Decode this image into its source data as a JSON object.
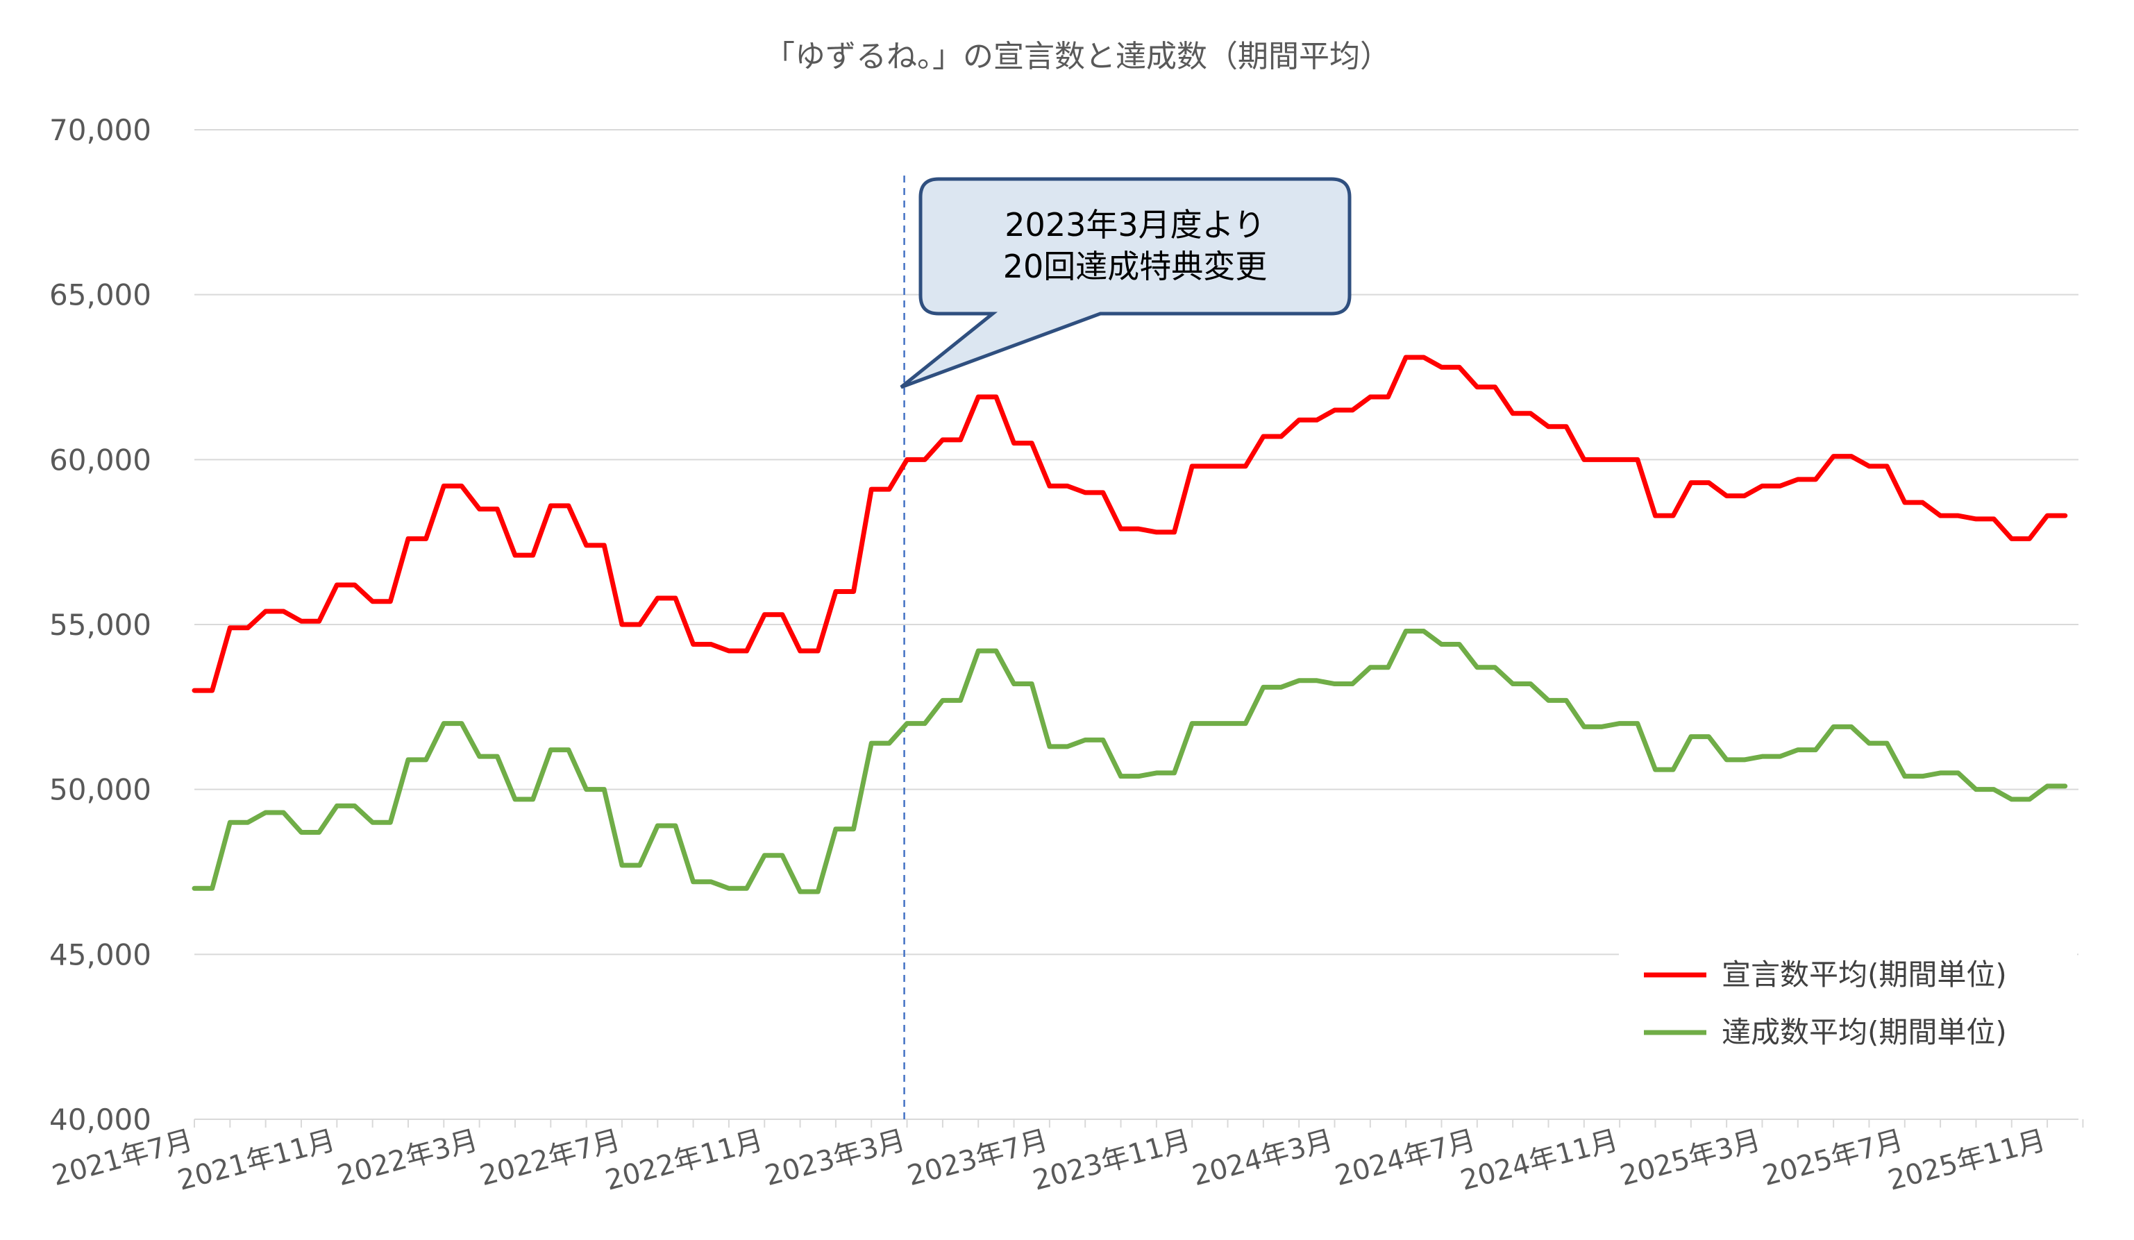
{
  "chart_data": {
    "type": "line",
    "title": "「ゆずるね。」の宣言数と達成数（期間平均）",
    "xlabel": "",
    "ylabel": "",
    "ylim": [
      40000,
      70000
    ],
    "y_ticks": [
      40000,
      45000,
      50000,
      55000,
      60000,
      65000,
      70000
    ],
    "y_tick_labels": [
      "40,000",
      "45,000",
      "50,000",
      "55,000",
      "60,000",
      "65,000",
      "70,000"
    ],
    "x_start": "2021-07",
    "x_end": "2026-01",
    "x_tick_labels": [
      "2021年7月",
      "2021年11月",
      "2022年3月",
      "2022年7月",
      "2022年11月",
      "2023年3月",
      "2023年7月",
      "2023年11月",
      "2024年3月",
      "2024年7月",
      "2024年11月",
      "2025年3月",
      "2025年7月",
      "2025年11月"
    ],
    "step": "half-month",
    "grid": true,
    "legend_position": "bottom-right",
    "series": [
      {
        "name": "宣言数平均(期間単位)",
        "color": "#ff0000",
        "values": [
          53000,
          53000,
          54900,
          54900,
          55400,
          55400,
          55100,
          55100,
          56200,
          56200,
          55700,
          55700,
          57600,
          57600,
          59200,
          59200,
          58500,
          58500,
          57100,
          57100,
          58600,
          58600,
          57400,
          57400,
          55000,
          55000,
          55800,
          55800,
          54400,
          54400,
          54200,
          54200,
          55300,
          55300,
          54200,
          54200,
          56000,
          56000,
          59100,
          59100,
          60000,
          60000,
          60600,
          60600,
          61900,
          61900,
          60500,
          60500,
          59200,
          59200,
          59000,
          59000,
          57900,
          57900,
          57800,
          57800,
          59800,
          59800,
          59800,
          59800,
          60700,
          60700,
          61200,
          61200,
          61500,
          61500,
          61900,
          61900,
          63100,
          63100,
          62800,
          62800,
          62200,
          62200,
          61400,
          61400,
          61000,
          61000,
          60000,
          60000,
          60000,
          60000,
          58300,
          58300,
          59300,
          59300,
          58900,
          58900,
          59200,
          59200,
          59400,
          59400,
          60100,
          60100,
          59800,
          59800,
          58700,
          58700,
          58300,
          58300,
          58200,
          58200,
          57600,
          57600,
          58300,
          58300
        ]
      },
      {
        "name": "達成数平均(期間単位)",
        "color": "#70ad47",
        "values": [
          47000,
          47000,
          49000,
          49000,
          49300,
          49300,
          48700,
          48700,
          49500,
          49500,
          49000,
          49000,
          50900,
          50900,
          52000,
          52000,
          51000,
          51000,
          49700,
          49700,
          51200,
          51200,
          50000,
          50000,
          47700,
          47700,
          48900,
          48900,
          47200,
          47200,
          47000,
          47000,
          48000,
          48000,
          46900,
          46900,
          48800,
          48800,
          51400,
          51400,
          52000,
          52000,
          52700,
          52700,
          54200,
          54200,
          53200,
          53200,
          51300,
          51300,
          51500,
          51500,
          50400,
          50400,
          50500,
          50500,
          52000,
          52000,
          52000,
          52000,
          53100,
          53100,
          53300,
          53300,
          53200,
          53200,
          53700,
          53700,
          54800,
          54800,
          54400,
          54400,
          53700,
          53700,
          53200,
          53200,
          52700,
          52700,
          51900,
          51900,
          52000,
          52000,
          50600,
          50600,
          51600,
          51600,
          50900,
          50900,
          51000,
          51000,
          51200,
          51200,
          51900,
          51900,
          51400,
          51400,
          50400,
          50400,
          50500,
          50500,
          50000,
          50000,
          49700,
          49700,
          50100,
          50100
        ]
      }
    ],
    "annotations": [
      {
        "text_lines": [
          "2023年3月度より",
          "20回達成特典変更"
        ],
        "at": "2023-03",
        "marker": "dashed vertical line"
      }
    ]
  }
}
